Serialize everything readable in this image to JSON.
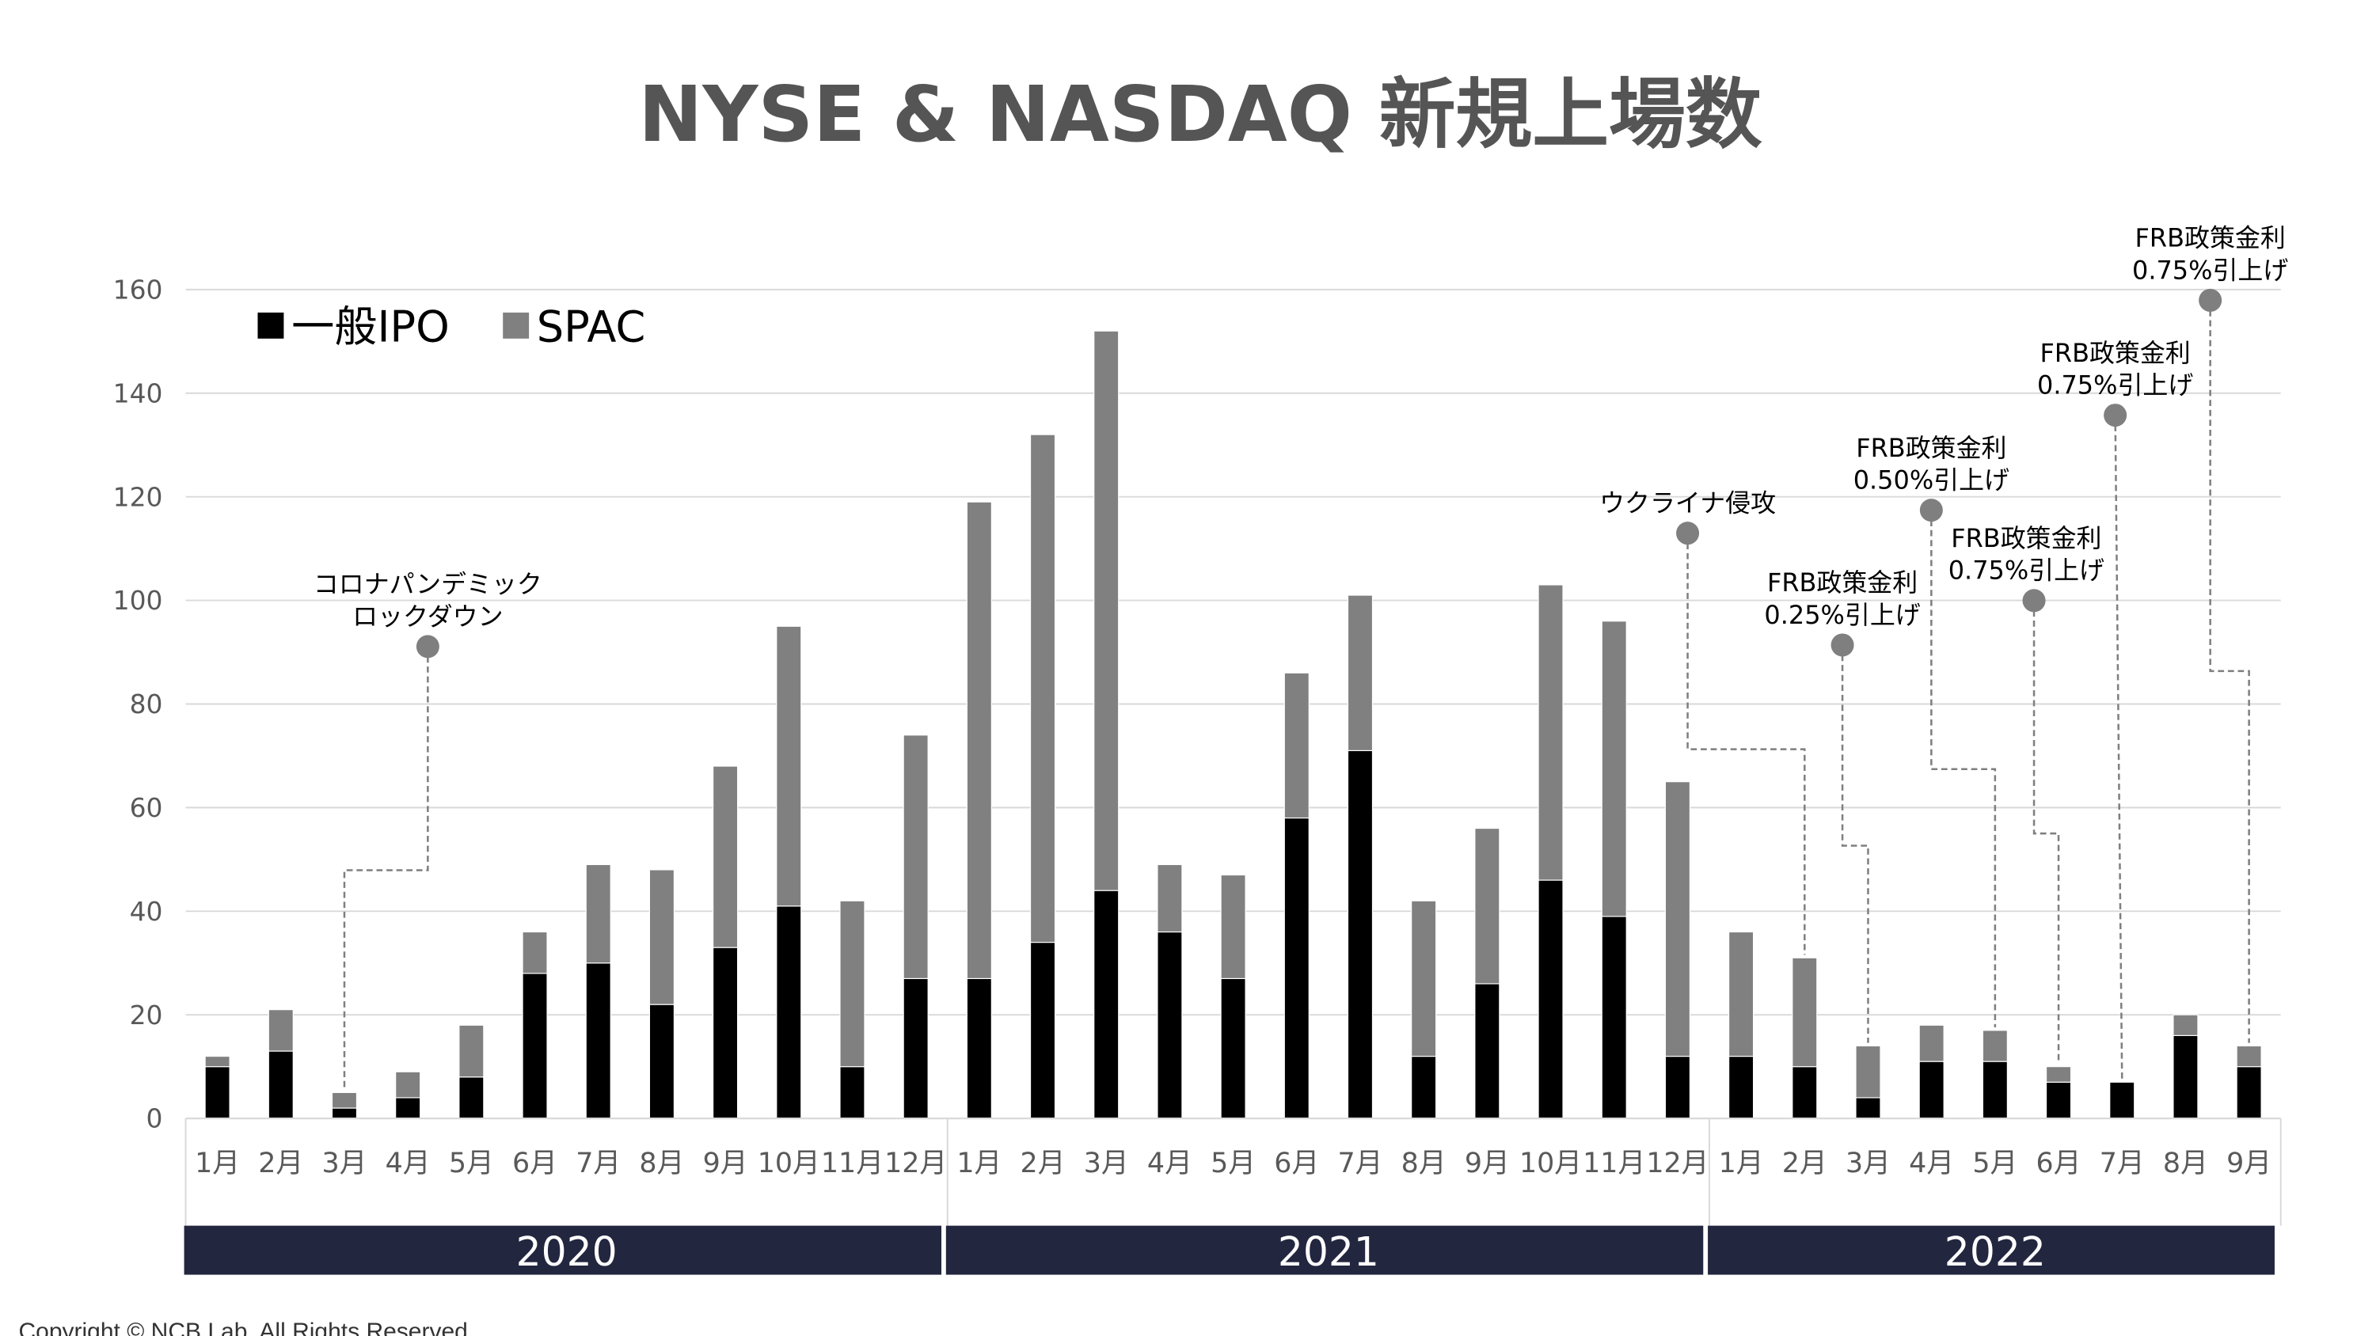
{
  "chart_data": {
    "type": "bar",
    "stacked": true,
    "title": "NYSE & NASDAQ 新規上場数",
    "xlabel": "",
    "ylabel": "",
    "ylim": [
      0,
      160
    ],
    "yticks": [
      "0",
      "20",
      "40",
      "60",
      "80",
      "100",
      "120",
      "140",
      "160"
    ],
    "grid": true,
    "legend_position": "top-left",
    "categories": [
      "1月",
      "2月",
      "3月",
      "4月",
      "5月",
      "6月",
      "7月",
      "8月",
      "9月",
      "10月",
      "11月",
      "12月",
      "1月",
      "2月",
      "3月",
      "4月",
      "5月",
      "6月",
      "7月",
      "8月",
      "9月",
      "10月",
      "11月",
      "12月",
      "1月",
      "2月",
      "3月",
      "4月",
      "5月",
      "6月",
      "7月",
      "8月",
      "9月"
    ],
    "years": [
      {
        "label": "2020",
        "months": 12
      },
      {
        "label": "2021",
        "months": 12
      },
      {
        "label": "2022",
        "months": 9
      }
    ],
    "series": [
      {
        "name": "一般IPO",
        "color": "#000000",
        "values": [
          10,
          13,
          2,
          4,
          8,
          28,
          30,
          22,
          33,
          41,
          10,
          27,
          27,
          34,
          44,
          36,
          27,
          58,
          71,
          12,
          26,
          46,
          39,
          12,
          12,
          10,
          4,
          11,
          11,
          7,
          7,
          16,
          10
        ]
      },
      {
        "name": "SPAC",
        "color": "#808080",
        "values": [
          2,
          8,
          3,
          5,
          10,
          8,
          19,
          26,
          35,
          54,
          32,
          47,
          92,
          98,
          108,
          13,
          20,
          28,
          30,
          30,
          30,
          57,
          57,
          53,
          24,
          21,
          10,
          7,
          6,
          3,
          0,
          4,
          4
        ]
      }
    ],
    "annotations": [
      {
        "lines": [
          "コロナパンデミック",
          "ロックダウン"
        ],
        "category_index": 2
      },
      {
        "lines": [
          "ウクライナ侵攻"
        ],
        "category_index": 25
      },
      {
        "lines": [
          "FRB政策金利",
          "0.25%引上げ"
        ],
        "category_index": 26
      },
      {
        "lines": [
          "FRB政策金利",
          "0.50%引上げ"
        ],
        "category_index": 28
      },
      {
        "lines": [
          "FRB政策金利",
          "0.75%引上げ"
        ],
        "category_index": 29
      },
      {
        "lines": [
          "FRB政策金利",
          "0.75%引上げ"
        ],
        "category_index": 30
      },
      {
        "lines": [
          "FRB政策金利",
          "0.75%引上げ"
        ],
        "category_index": 32
      }
    ]
  },
  "footer": {
    "copyright": "Copyright © NCB Lab. All Rights Reserved"
  },
  "colors": {
    "year_band": "#22263f",
    "grid": "#d9d9d9",
    "annotation": "#7f7f7f"
  }
}
